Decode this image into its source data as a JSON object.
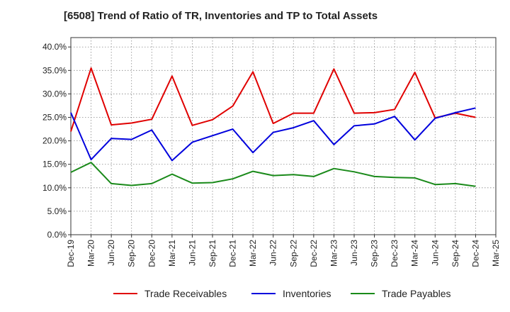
{
  "chart_data": {
    "type": "line",
    "title": "[6508]  Trend of Ratio of TR, Inventories and TP to Total Assets",
    "xlabel": "",
    "ylabel": "",
    "x_ticks": [
      "Dec-19",
      "Mar-20",
      "Jun-20",
      "Sep-20",
      "Dec-20",
      "Mar-21",
      "Jun-21",
      "Sep-21",
      "Dec-21",
      "Mar-22",
      "Jun-22",
      "Sep-22",
      "Dec-22",
      "Mar-23",
      "Jun-23",
      "Sep-23",
      "Dec-23",
      "Mar-24",
      "Jun-24",
      "Sep-24",
      "Dec-24",
      "Mar-25"
    ],
    "y_ticks": [
      "0.0%",
      "5.0%",
      "10.0%",
      "15.0%",
      "20.0%",
      "25.0%",
      "30.0%",
      "35.0%",
      "40.0%"
    ],
    "ylim": [
      0,
      42
    ],
    "grid": true,
    "legend_position": "bottom",
    "categories": [
      "Dec-19",
      "Mar-20",
      "Jun-20",
      "Sep-20",
      "Dec-20",
      "Mar-21",
      "Jun-21",
      "Sep-21",
      "Dec-21",
      "Mar-22",
      "Jun-22",
      "Sep-22",
      "Dec-22",
      "Mar-23",
      "Jun-23",
      "Sep-23",
      "Dec-23",
      "Mar-24",
      "Jun-24",
      "Sep-24",
      "Dec-24"
    ],
    "series": [
      {
        "name": "Trade Receivables",
        "color": "#e00000",
        "values": [
          22.0,
          35.5,
          23.4,
          23.8,
          24.6,
          33.8,
          23.3,
          24.5,
          27.4,
          34.7,
          23.7,
          25.9,
          25.9,
          35.3,
          25.9,
          26.0,
          26.7,
          34.6,
          24.9,
          25.9,
          25.0
        ]
      },
      {
        "name": "Inventories",
        "color": "#0000dd",
        "values": [
          26.0,
          16.0,
          20.5,
          20.3,
          22.3,
          15.8,
          19.7,
          21.1,
          22.5,
          17.5,
          21.8,
          22.8,
          24.3,
          19.2,
          23.2,
          23.6,
          25.2,
          20.2,
          24.8,
          26.0,
          27.0
        ]
      },
      {
        "name": "Trade Payables",
        "color": "#1a8a1a",
        "values": [
          13.3,
          15.4,
          10.9,
          10.5,
          10.9,
          12.9,
          11.0,
          11.1,
          11.9,
          13.5,
          12.6,
          12.8,
          12.4,
          14.1,
          13.4,
          12.4,
          12.2,
          12.1,
          10.7,
          10.9,
          10.3
        ]
      }
    ]
  }
}
